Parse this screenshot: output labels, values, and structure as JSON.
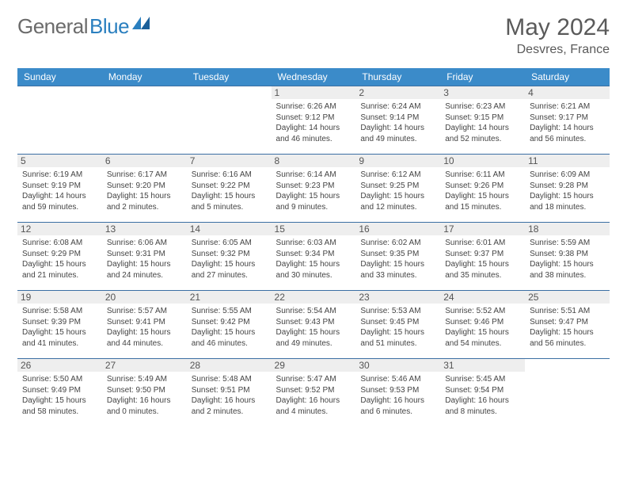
{
  "brand": {
    "part1": "General",
    "part2": "Blue",
    "accent_color": "#2a7fbf",
    "gray_color": "#6b6b6b"
  },
  "title": "May 2024",
  "location": "Desvres, France",
  "header_bg": "#3b8bc9",
  "row_border": "#3b6fa3",
  "daynum_bg": "#eeeeee",
  "text_color": "#444444",
  "weekdays": [
    "Sunday",
    "Monday",
    "Tuesday",
    "Wednesday",
    "Thursday",
    "Friday",
    "Saturday"
  ],
  "weeks": [
    [
      {
        "empty": true
      },
      {
        "empty": true
      },
      {
        "empty": true
      },
      {
        "num": "1",
        "sunrise": "Sunrise: 6:26 AM",
        "sunset": "Sunset: 9:12 PM",
        "daylight": "Daylight: 14 hours and 46 minutes."
      },
      {
        "num": "2",
        "sunrise": "Sunrise: 6:24 AM",
        "sunset": "Sunset: 9:14 PM",
        "daylight": "Daylight: 14 hours and 49 minutes."
      },
      {
        "num": "3",
        "sunrise": "Sunrise: 6:23 AM",
        "sunset": "Sunset: 9:15 PM",
        "daylight": "Daylight: 14 hours and 52 minutes."
      },
      {
        "num": "4",
        "sunrise": "Sunrise: 6:21 AM",
        "sunset": "Sunset: 9:17 PM",
        "daylight": "Daylight: 14 hours and 56 minutes."
      }
    ],
    [
      {
        "num": "5",
        "sunrise": "Sunrise: 6:19 AM",
        "sunset": "Sunset: 9:19 PM",
        "daylight": "Daylight: 14 hours and 59 minutes."
      },
      {
        "num": "6",
        "sunrise": "Sunrise: 6:17 AM",
        "sunset": "Sunset: 9:20 PM",
        "daylight": "Daylight: 15 hours and 2 minutes."
      },
      {
        "num": "7",
        "sunrise": "Sunrise: 6:16 AM",
        "sunset": "Sunset: 9:22 PM",
        "daylight": "Daylight: 15 hours and 5 minutes."
      },
      {
        "num": "8",
        "sunrise": "Sunrise: 6:14 AM",
        "sunset": "Sunset: 9:23 PM",
        "daylight": "Daylight: 15 hours and 9 minutes."
      },
      {
        "num": "9",
        "sunrise": "Sunrise: 6:12 AM",
        "sunset": "Sunset: 9:25 PM",
        "daylight": "Daylight: 15 hours and 12 minutes."
      },
      {
        "num": "10",
        "sunrise": "Sunrise: 6:11 AM",
        "sunset": "Sunset: 9:26 PM",
        "daylight": "Daylight: 15 hours and 15 minutes."
      },
      {
        "num": "11",
        "sunrise": "Sunrise: 6:09 AM",
        "sunset": "Sunset: 9:28 PM",
        "daylight": "Daylight: 15 hours and 18 minutes."
      }
    ],
    [
      {
        "num": "12",
        "sunrise": "Sunrise: 6:08 AM",
        "sunset": "Sunset: 9:29 PM",
        "daylight": "Daylight: 15 hours and 21 minutes."
      },
      {
        "num": "13",
        "sunrise": "Sunrise: 6:06 AM",
        "sunset": "Sunset: 9:31 PM",
        "daylight": "Daylight: 15 hours and 24 minutes."
      },
      {
        "num": "14",
        "sunrise": "Sunrise: 6:05 AM",
        "sunset": "Sunset: 9:32 PM",
        "daylight": "Daylight: 15 hours and 27 minutes."
      },
      {
        "num": "15",
        "sunrise": "Sunrise: 6:03 AM",
        "sunset": "Sunset: 9:34 PM",
        "daylight": "Daylight: 15 hours and 30 minutes."
      },
      {
        "num": "16",
        "sunrise": "Sunrise: 6:02 AM",
        "sunset": "Sunset: 9:35 PM",
        "daylight": "Daylight: 15 hours and 33 minutes."
      },
      {
        "num": "17",
        "sunrise": "Sunrise: 6:01 AM",
        "sunset": "Sunset: 9:37 PM",
        "daylight": "Daylight: 15 hours and 35 minutes."
      },
      {
        "num": "18",
        "sunrise": "Sunrise: 5:59 AM",
        "sunset": "Sunset: 9:38 PM",
        "daylight": "Daylight: 15 hours and 38 minutes."
      }
    ],
    [
      {
        "num": "19",
        "sunrise": "Sunrise: 5:58 AM",
        "sunset": "Sunset: 9:39 PM",
        "daylight": "Daylight: 15 hours and 41 minutes."
      },
      {
        "num": "20",
        "sunrise": "Sunrise: 5:57 AM",
        "sunset": "Sunset: 9:41 PM",
        "daylight": "Daylight: 15 hours and 44 minutes."
      },
      {
        "num": "21",
        "sunrise": "Sunrise: 5:55 AM",
        "sunset": "Sunset: 9:42 PM",
        "daylight": "Daylight: 15 hours and 46 minutes."
      },
      {
        "num": "22",
        "sunrise": "Sunrise: 5:54 AM",
        "sunset": "Sunset: 9:43 PM",
        "daylight": "Daylight: 15 hours and 49 minutes."
      },
      {
        "num": "23",
        "sunrise": "Sunrise: 5:53 AM",
        "sunset": "Sunset: 9:45 PM",
        "daylight": "Daylight: 15 hours and 51 minutes."
      },
      {
        "num": "24",
        "sunrise": "Sunrise: 5:52 AM",
        "sunset": "Sunset: 9:46 PM",
        "daylight": "Daylight: 15 hours and 54 minutes."
      },
      {
        "num": "25",
        "sunrise": "Sunrise: 5:51 AM",
        "sunset": "Sunset: 9:47 PM",
        "daylight": "Daylight: 15 hours and 56 minutes."
      }
    ],
    [
      {
        "num": "26",
        "sunrise": "Sunrise: 5:50 AM",
        "sunset": "Sunset: 9:49 PM",
        "daylight": "Daylight: 15 hours and 58 minutes."
      },
      {
        "num": "27",
        "sunrise": "Sunrise: 5:49 AM",
        "sunset": "Sunset: 9:50 PM",
        "daylight": "Daylight: 16 hours and 0 minutes."
      },
      {
        "num": "28",
        "sunrise": "Sunrise: 5:48 AM",
        "sunset": "Sunset: 9:51 PM",
        "daylight": "Daylight: 16 hours and 2 minutes."
      },
      {
        "num": "29",
        "sunrise": "Sunrise: 5:47 AM",
        "sunset": "Sunset: 9:52 PM",
        "daylight": "Daylight: 16 hours and 4 minutes."
      },
      {
        "num": "30",
        "sunrise": "Sunrise: 5:46 AM",
        "sunset": "Sunset: 9:53 PM",
        "daylight": "Daylight: 16 hours and 6 minutes."
      },
      {
        "num": "31",
        "sunrise": "Sunrise: 5:45 AM",
        "sunset": "Sunset: 9:54 PM",
        "daylight": "Daylight: 16 hours and 8 minutes."
      },
      {
        "empty": true
      }
    ]
  ]
}
